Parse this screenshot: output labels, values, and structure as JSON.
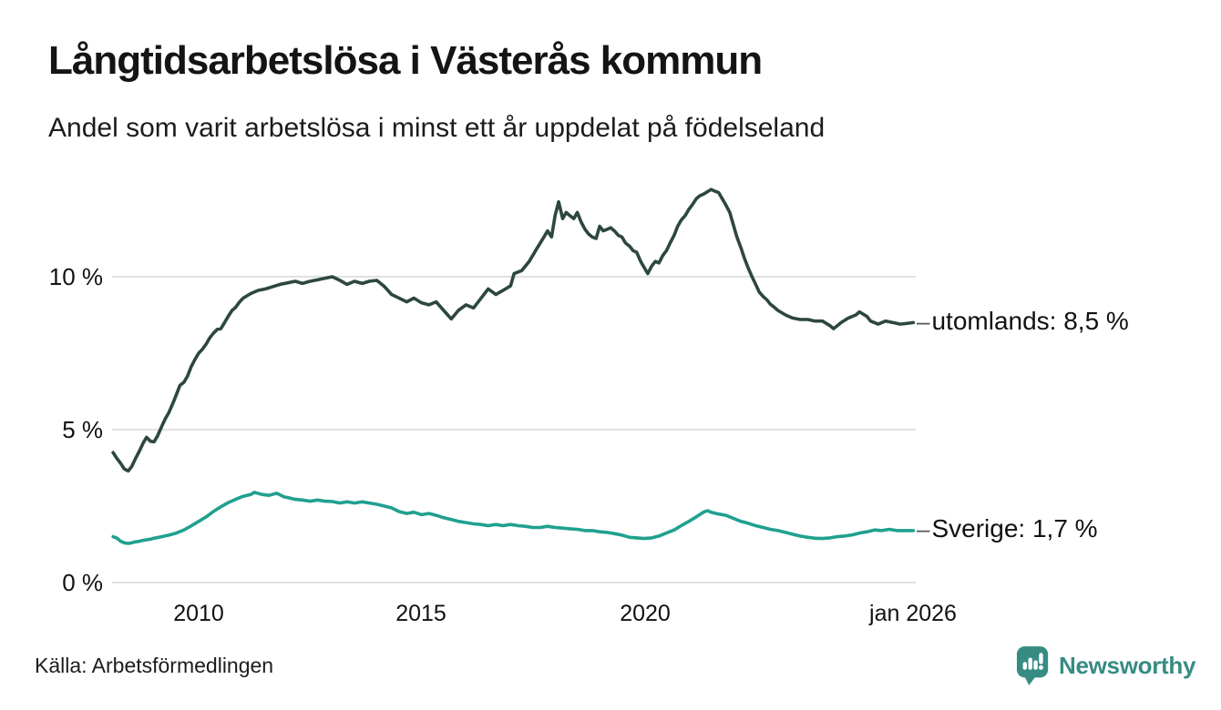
{
  "header": {
    "title": "Långtidsarbetslösa i Västerås kommun",
    "subtitle": "Andel som varit arbetslösa i minst ett år uppdelat på födelseland"
  },
  "footer": {
    "source": "Källa: Arbetsförmedlingen",
    "brand": {
      "name": "Newsworthy",
      "color": "#368c83",
      "icon": "speech-bubble-bar-chart-icon"
    }
  },
  "chart_data": {
    "type": "line",
    "title": "Långtidsarbetslösa i Västerås kommun",
    "subtitle": "Andel som varit arbetslösa i minst ett år uppdelat på födelseland",
    "unit": "%",
    "grid": true,
    "gridline_color": "#e1e1e1",
    "background": "#ffffff",
    "legend_position": "right-end-labels",
    "connector_dash": "–",
    "x_axis": {
      "ticks": [
        "2010",
        "2015",
        "2020",
        "jan 2026"
      ],
      "tick_years": [
        2010,
        2015,
        2020,
        2026.04
      ],
      "range": [
        2008.05,
        2026.1
      ]
    },
    "y_axis": {
      "ticks": [
        "10 %",
        "5 %",
        "0 %"
      ],
      "tick_values": [
        10,
        5,
        0
      ],
      "range": [
        0,
        13.5
      ]
    },
    "series": [
      {
        "name": "utomlands",
        "end_label": "utomlands: 8,5 %",
        "latest_value": 8.5,
        "color": "#2d473e",
        "x": [
          2008.08,
          2008.17,
          2008.25,
          2008.33,
          2008.42,
          2008.5,
          2008.58,
          2008.67,
          2008.75,
          2008.83,
          2008.92,
          2009,
          2009.08,
          2009.17,
          2009.25,
          2009.33,
          2009.42,
          2009.5,
          2009.58,
          2009.67,
          2009.75,
          2009.83,
          2009.92,
          2010,
          2010.08,
          2010.17,
          2010.25,
          2010.33,
          2010.42,
          2010.5,
          2010.58,
          2010.67,
          2010.75,
          2010.83,
          2010.92,
          2011,
          2011.17,
          2011.33,
          2011.5,
          2011.67,
          2011.83,
          2012,
          2012.17,
          2012.33,
          2012.5,
          2012.67,
          2012.83,
          2013,
          2013.17,
          2013.33,
          2013.5,
          2013.67,
          2013.83,
          2014,
          2014.17,
          2014.33,
          2014.5,
          2014.67,
          2014.83,
          2015,
          2015.17,
          2015.33,
          2015.5,
          2015.67,
          2015.83,
          2016,
          2016.17,
          2016.33,
          2016.5,
          2016.67,
          2016.83,
          2017,
          2017.08,
          2017.25,
          2017.42,
          2017.58,
          2017.75,
          2017.83,
          2017.92,
          2018,
          2018.08,
          2018.17,
          2018.25,
          2018.33,
          2018.42,
          2018.5,
          2018.58,
          2018.67,
          2018.75,
          2018.83,
          2018.92,
          2019,
          2019.08,
          2019.17,
          2019.25,
          2019.33,
          2019.42,
          2019.5,
          2019.58,
          2019.67,
          2019.75,
          2019.83,
          2019.92,
          2020,
          2020.08,
          2020.17,
          2020.25,
          2020.33,
          2020.42,
          2020.5,
          2020.58,
          2020.67,
          2020.75,
          2020.83,
          2020.92,
          2021,
          2021.08,
          2021.17,
          2021.25,
          2021.33,
          2021.42,
          2021.5,
          2021.58,
          2021.67,
          2021.75,
          2021.83,
          2021.92,
          2022,
          2022.08,
          2022.17,
          2022.25,
          2022.33,
          2022.42,
          2022.5,
          2022.58,
          2022.67,
          2022.75,
          2022.83,
          2022.92,
          2023,
          2023.17,
          2023.33,
          2023.5,
          2023.67,
          2023.83,
          2024,
          2024.17,
          2024.25,
          2024.42,
          2024.58,
          2024.75,
          2024.83,
          2025,
          2025.08,
          2025.25,
          2025.42,
          2025.58,
          2025.75,
          2025.92,
          2026.04
        ],
        "values": [
          4.25,
          4.05,
          3.9,
          3.72,
          3.65,
          3.8,
          4.05,
          4.3,
          4.55,
          4.75,
          4.62,
          4.6,
          4.8,
          5.1,
          5.35,
          5.55,
          5.85,
          6.15,
          6.45,
          6.55,
          6.75,
          7.05,
          7.3,
          7.5,
          7.62,
          7.8,
          8.0,
          8.15,
          8.28,
          8.3,
          8.5,
          8.72,
          8.9,
          9.0,
          9.18,
          9.3,
          9.45,
          9.55,
          9.6,
          9.68,
          9.75,
          9.8,
          9.85,
          9.78,
          9.85,
          9.9,
          9.95,
          10.0,
          9.88,
          9.75,
          9.85,
          9.78,
          9.85,
          9.88,
          9.68,
          9.42,
          9.3,
          9.18,
          9.3,
          9.15,
          9.08,
          9.18,
          8.9,
          8.62,
          8.9,
          9.08,
          8.98,
          9.28,
          9.6,
          9.42,
          9.55,
          9.7,
          10.1,
          10.2,
          10.5,
          10.9,
          11.3,
          11.5,
          11.3,
          12.0,
          12.45,
          11.9,
          12.1,
          12.0,
          11.9,
          12.1,
          11.8,
          11.55,
          11.4,
          11.3,
          11.25,
          11.65,
          11.5,
          11.55,
          11.6,
          11.5,
          11.35,
          11.3,
          11.1,
          11.0,
          10.85,
          10.8,
          10.5,
          10.3,
          10.1,
          10.35,
          10.5,
          10.45,
          10.7,
          10.85,
          11.1,
          11.35,
          11.65,
          11.85,
          12.0,
          12.2,
          12.35,
          12.55,
          12.65,
          12.7,
          12.78,
          12.85,
          12.8,
          12.75,
          12.55,
          12.35,
          12.1,
          11.7,
          11.3,
          10.95,
          10.6,
          10.3,
          10.0,
          9.75,
          9.5,
          9.35,
          9.25,
          9.1,
          9.0,
          8.9,
          8.75,
          8.65,
          8.6,
          8.6,
          8.55,
          8.55,
          8.4,
          8.3,
          8.5,
          8.65,
          8.75,
          8.85,
          8.7,
          8.55,
          8.45,
          8.55,
          8.5,
          8.45,
          8.48,
          8.5
        ]
      },
      {
        "name": "Sverige",
        "end_label": "Sverige: 1,7 %",
        "latest_value": 1.7,
        "color": "#20a08f",
        "x": [
          2008.08,
          2008.17,
          2008.25,
          2008.33,
          2008.42,
          2008.5,
          2008.58,
          2008.67,
          2008.75,
          2008.83,
          2008.92,
          2009,
          2009.17,
          2009.33,
          2009.5,
          2009.67,
          2009.83,
          2010,
          2010.17,
          2010.33,
          2010.5,
          2010.67,
          2010.83,
          2011,
          2011.17,
          2011.25,
          2011.42,
          2011.58,
          2011.75,
          2011.92,
          2012,
          2012.17,
          2012.33,
          2012.5,
          2012.67,
          2012.83,
          2013,
          2013.17,
          2013.33,
          2013.5,
          2013.67,
          2013.83,
          2014,
          2014.17,
          2014.33,
          2014.5,
          2014.67,
          2014.83,
          2015,
          2015.17,
          2015.33,
          2015.5,
          2015.67,
          2015.83,
          2016,
          2016.17,
          2016.33,
          2016.5,
          2016.67,
          2016.83,
          2017,
          2017.17,
          2017.33,
          2017.5,
          2017.67,
          2017.83,
          2018,
          2018.17,
          2018.33,
          2018.5,
          2018.67,
          2018.83,
          2019,
          2019.17,
          2019.33,
          2019.5,
          2019.67,
          2019.83,
          2020,
          2020.17,
          2020.33,
          2020.5,
          2020.67,
          2020.83,
          2021,
          2021.17,
          2021.33,
          2021.42,
          2021.5,
          2021.67,
          2021.83,
          2022,
          2022.17,
          2022.33,
          2022.5,
          2022.67,
          2022.83,
          2023,
          2023.17,
          2023.33,
          2023.5,
          2023.67,
          2023.83,
          2024,
          2024.17,
          2024.33,
          2024.5,
          2024.67,
          2024.83,
          2025,
          2025.17,
          2025.33,
          2025.5,
          2025.67,
          2025.83,
          2026.04
        ],
        "values": [
          1.5,
          1.45,
          1.35,
          1.3,
          1.28,
          1.3,
          1.33,
          1.35,
          1.38,
          1.4,
          1.42,
          1.45,
          1.5,
          1.55,
          1.62,
          1.72,
          1.85,
          2.0,
          2.15,
          2.32,
          2.48,
          2.62,
          2.72,
          2.82,
          2.88,
          2.95,
          2.88,
          2.85,
          2.92,
          2.8,
          2.78,
          2.72,
          2.7,
          2.66,
          2.7,
          2.66,
          2.65,
          2.6,
          2.64,
          2.6,
          2.64,
          2.6,
          2.56,
          2.5,
          2.44,
          2.32,
          2.26,
          2.3,
          2.22,
          2.26,
          2.2,
          2.12,
          2.06,
          2.0,
          1.96,
          1.92,
          1.9,
          1.86,
          1.9,
          1.86,
          1.9,
          1.86,
          1.84,
          1.8,
          1.8,
          1.84,
          1.8,
          1.78,
          1.76,
          1.74,
          1.7,
          1.7,
          1.66,
          1.64,
          1.6,
          1.55,
          1.48,
          1.46,
          1.44,
          1.46,
          1.52,
          1.62,
          1.72,
          1.86,
          2.0,
          2.15,
          2.3,
          2.35,
          2.3,
          2.24,
          2.2,
          2.1,
          2.0,
          1.94,
          1.86,
          1.8,
          1.74,
          1.7,
          1.64,
          1.58,
          1.52,
          1.48,
          1.45,
          1.44,
          1.46,
          1.5,
          1.52,
          1.56,
          1.62,
          1.66,
          1.72,
          1.7,
          1.74,
          1.7,
          1.7,
          1.7
        ]
      }
    ]
  }
}
